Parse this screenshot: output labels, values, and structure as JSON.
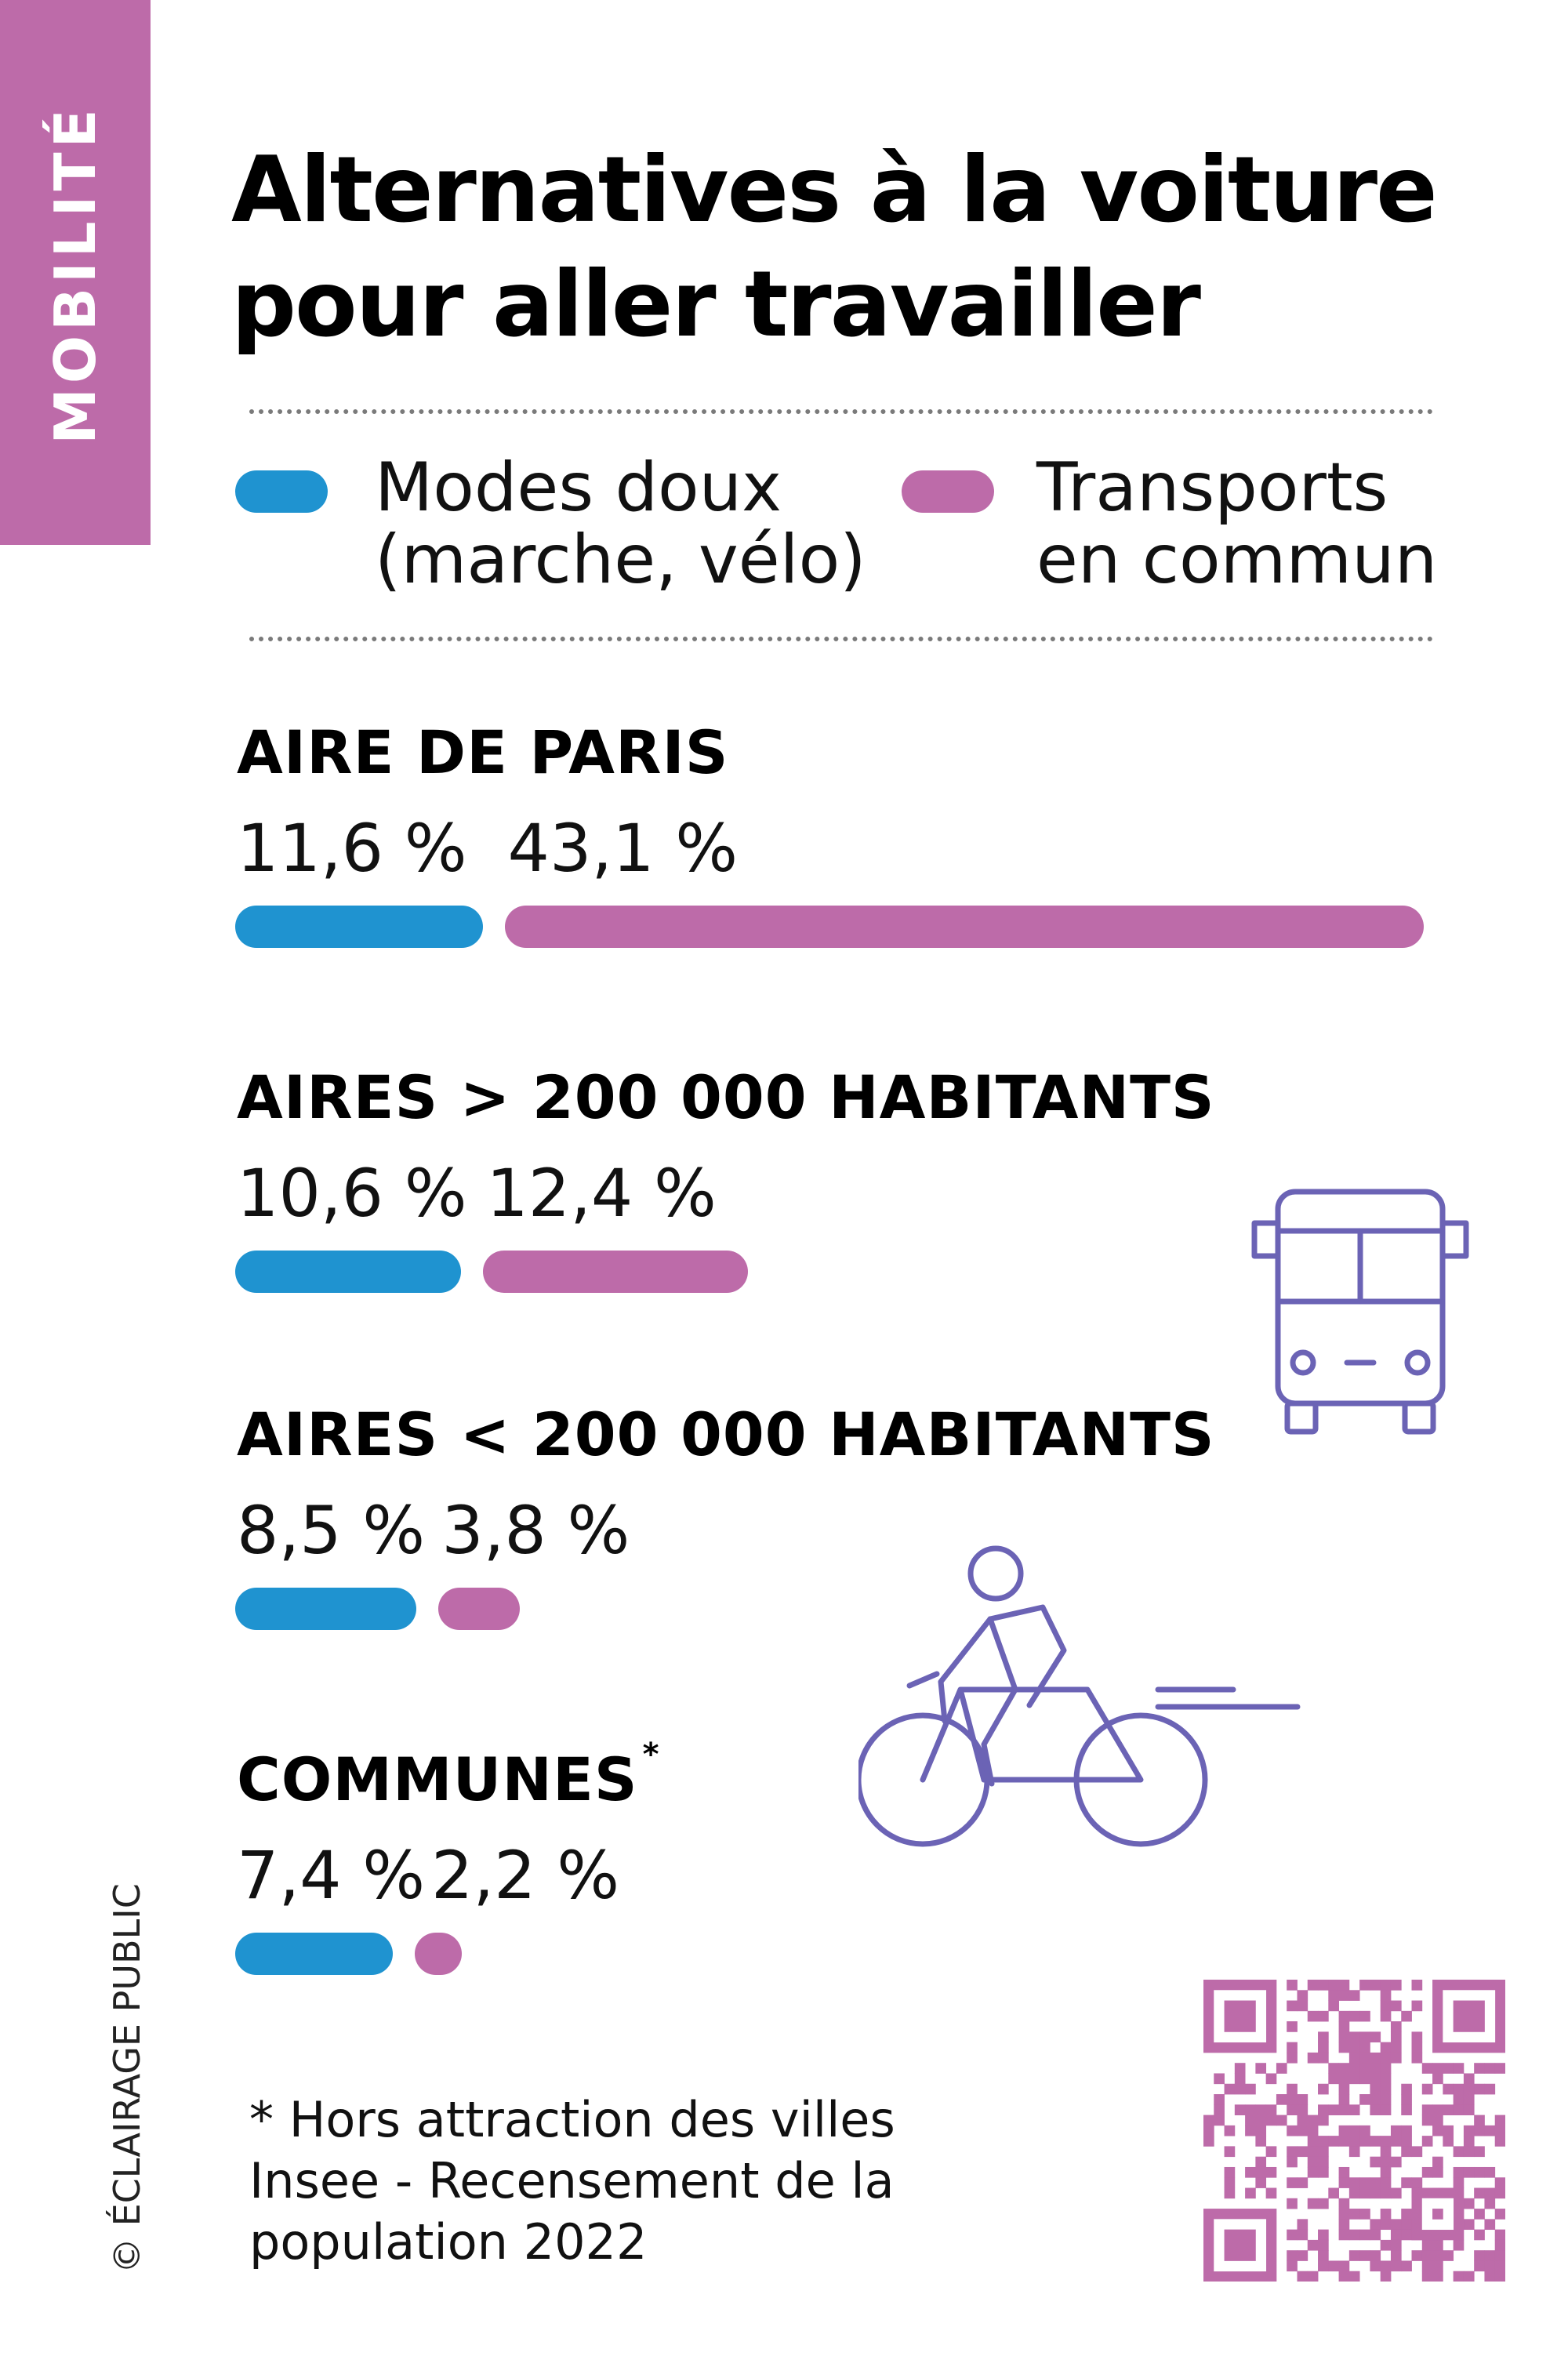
{
  "category_tab": "MOBILITÉ",
  "title_lines": [
    "Alternatives à la voiture",
    "pour aller travailler"
  ],
  "colors": {
    "modes_doux": "#1f93d0",
    "transports": "#bd6ba9",
    "icon": "#6b63b5"
  },
  "legend": {
    "modes_doux": [
      "Modes doux",
      "(marche, vélo)"
    ],
    "transports": [
      "Transports",
      "en commun"
    ]
  },
  "chart_data": {
    "type": "bar",
    "orientation": "horizontal",
    "unit": "%",
    "categories": [
      "AIRE DE PARIS",
      "AIRES > 200 000 HABITANTS",
      "AIRES < 200 000 HABITANTS",
      "COMMUNES"
    ],
    "category_marks": [
      "",
      "",
      "",
      "*"
    ],
    "series": [
      {
        "name": "Modes doux (marche, vélo)",
        "values": [
          11.6,
          10.6,
          8.5,
          7.4
        ],
        "labels": [
          "11,6 %",
          "10,6 %",
          "8,5 %",
          "7,4 %"
        ]
      },
      {
        "name": "Transports en commun",
        "values": [
          43.1,
          12.4,
          3.8,
          2.2
        ],
        "labels": [
          "43,1 %",
          "12,4 %",
          "3,8 %",
          "2,2 %"
        ]
      }
    ]
  },
  "icons": [
    "bus-icon",
    "cyclist-icon",
    "qr-code"
  ],
  "footnote": [
    "* Hors attraction des villes",
    "Insee - Recensement de la",
    "population 2022"
  ],
  "copyright": "© ÉCLAIRAGE PUBLIC"
}
